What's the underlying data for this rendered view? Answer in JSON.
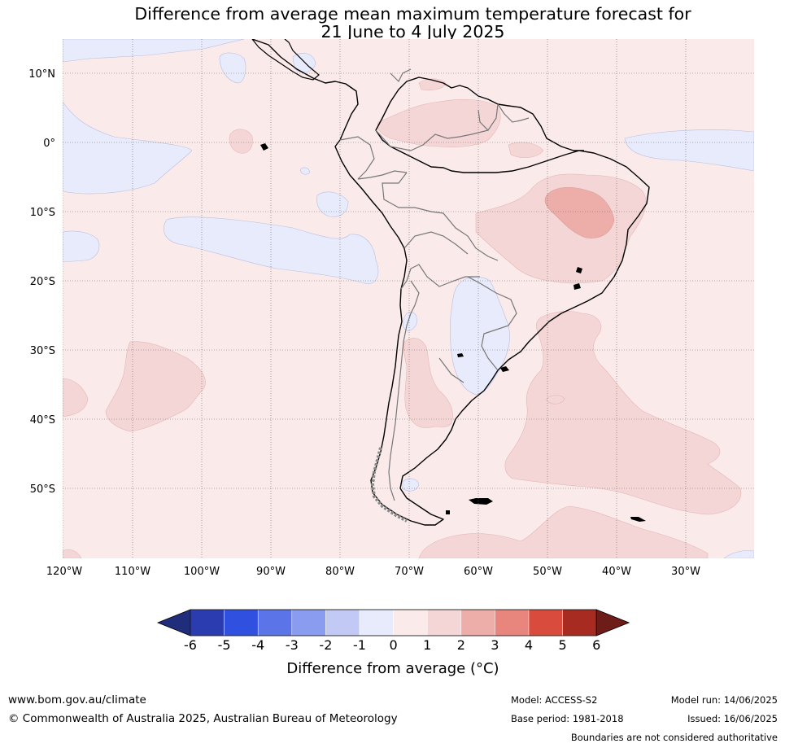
{
  "title_line1": "Difference from average mean maximum temperature forecast for",
  "title_line2": "21 June to 4 July 2025",
  "lat_labels": [
    "10°N",
    "0°",
    "10°S",
    "20°S",
    "30°S",
    "40°S",
    "50°S"
  ],
  "lon_labels": [
    "120°W",
    "110°W",
    "100°W",
    "90°W",
    "80°W",
    "70°W",
    "60°W",
    "50°W",
    "40°W",
    "30°W"
  ],
  "colorbar": {
    "title": "Difference from average (°C)",
    "tick_labels": [
      "-6",
      "-5",
      "-4",
      "-3",
      "-2",
      "-1",
      "0",
      "1",
      "2",
      "3",
      "4",
      "5",
      "6"
    ],
    "colors": [
      "#1f2d7a",
      "#2a3cb0",
      "#3050e0",
      "#5b74e8",
      "#8a9cf0",
      "#c2c9f5",
      "#e8ebfb",
      "#fbeaea",
      "#f5d6d6",
      "#edaeaa",
      "#e8867e",
      "#d94b3d",
      "#a82b22",
      "#6e1c17"
    ]
  },
  "footer": {
    "website": "www.bom.gov.au/climate",
    "copyright": "© Commonwealth of Australia 2025, Australian Bureau of Meteorology",
    "model": "Model: ACCESS-S2",
    "base_period": "Base period: 1981-2018",
    "model_run": "Model run: 14/06/2025",
    "issued": "Issued: 16/06/2025",
    "disclaimer": "Boundaries are not considered authoritative"
  }
}
